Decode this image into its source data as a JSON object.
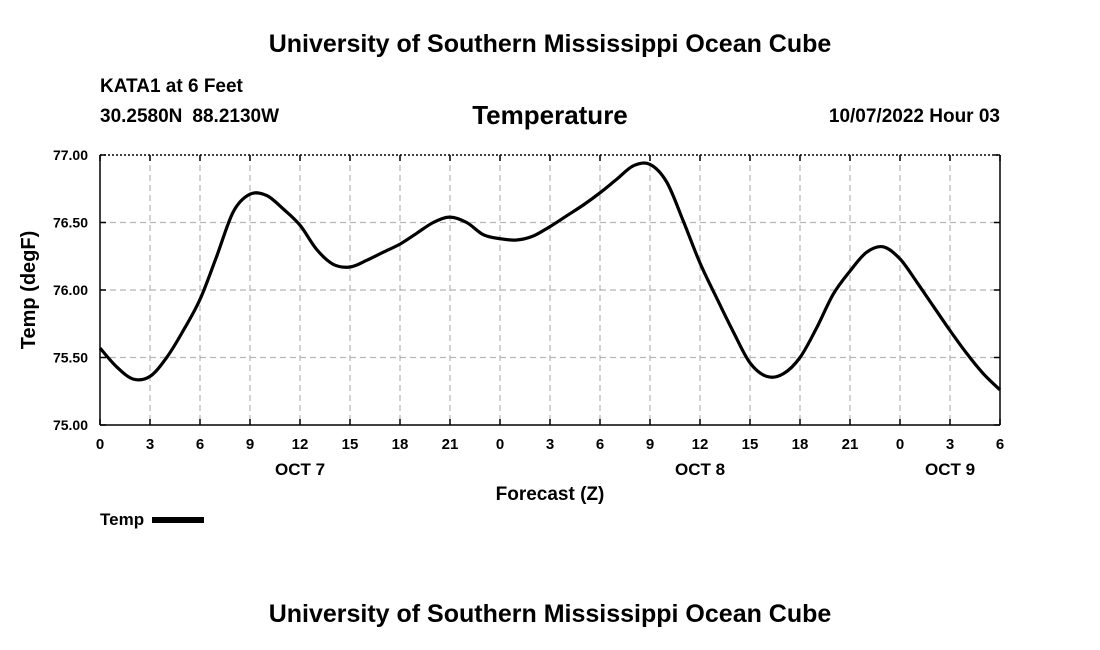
{
  "page": {
    "title": "University of Southern Mississippi Ocean Cube",
    "footer_title": "University of Southern Mississippi Ocean Cube",
    "station": "KATA1 at 6 Feet",
    "latitude": "30.2580N",
    "longitude": "88.2130W",
    "datetime": "10/07/2022 Hour 03"
  },
  "chart_data": {
    "type": "line",
    "title": "Temperature",
    "xlabel": "Forecast (Z)",
    "ylabel": "Temp (degF)",
    "xlim": [
      0,
      54
    ],
    "ylim": [
      75.0,
      77.0
    ],
    "grid": true,
    "x_ticks": [
      0,
      3,
      6,
      9,
      12,
      15,
      18,
      21,
      24,
      27,
      30,
      33,
      36,
      39,
      42,
      45,
      48,
      51,
      54
    ],
    "x_tick_labels": [
      "0",
      "3",
      "6",
      "9",
      "12",
      "15",
      "18",
      "21",
      "0",
      "3",
      "6",
      "9",
      "12",
      "15",
      "18",
      "21",
      "0",
      "3",
      "6"
    ],
    "y_ticks": [
      75.0,
      75.5,
      76.0,
      76.5,
      77.0
    ],
    "y_tick_labels": [
      "75.00",
      "75.50",
      "76.00",
      "76.50",
      "77.00"
    ],
    "date_labels": [
      {
        "x": 12,
        "label": "OCT 7"
      },
      {
        "x": 36,
        "label": "OCT 8"
      },
      {
        "x": 51,
        "label": "OCT 9"
      }
    ],
    "series": [
      {
        "name": "Temp",
        "color": "#000000",
        "x": [
          0,
          1,
          2,
          3,
          4,
          5,
          6,
          7,
          8,
          9,
          10,
          11,
          12,
          13,
          14,
          15,
          16,
          17,
          18,
          19,
          20,
          21,
          22,
          23,
          24,
          25,
          26,
          27,
          28,
          29,
          30,
          31,
          32,
          33,
          34,
          35,
          36,
          37,
          38,
          39,
          40,
          41,
          42,
          43,
          44,
          45,
          46,
          47,
          48,
          49,
          50,
          51,
          52,
          53,
          54
        ],
        "values": [
          75.57,
          75.43,
          75.34,
          75.36,
          75.5,
          75.7,
          75.93,
          76.25,
          76.58,
          76.71,
          76.7,
          76.6,
          76.48,
          76.3,
          76.19,
          76.17,
          76.22,
          76.28,
          76.34,
          76.42,
          76.5,
          76.54,
          76.5,
          76.41,
          76.38,
          76.37,
          76.4,
          76.47,
          76.55,
          76.63,
          76.72,
          76.82,
          76.92,
          76.93,
          76.8,
          76.51,
          76.2,
          75.94,
          75.69,
          75.46,
          75.36,
          75.38,
          75.5,
          75.72,
          75.97,
          76.14,
          76.28,
          76.32,
          76.23,
          76.06,
          75.88,
          75.7,
          75.53,
          75.38,
          75.26
        ]
      }
    ],
    "legend": [
      {
        "label": "Temp",
        "color": "#000000"
      }
    ]
  }
}
